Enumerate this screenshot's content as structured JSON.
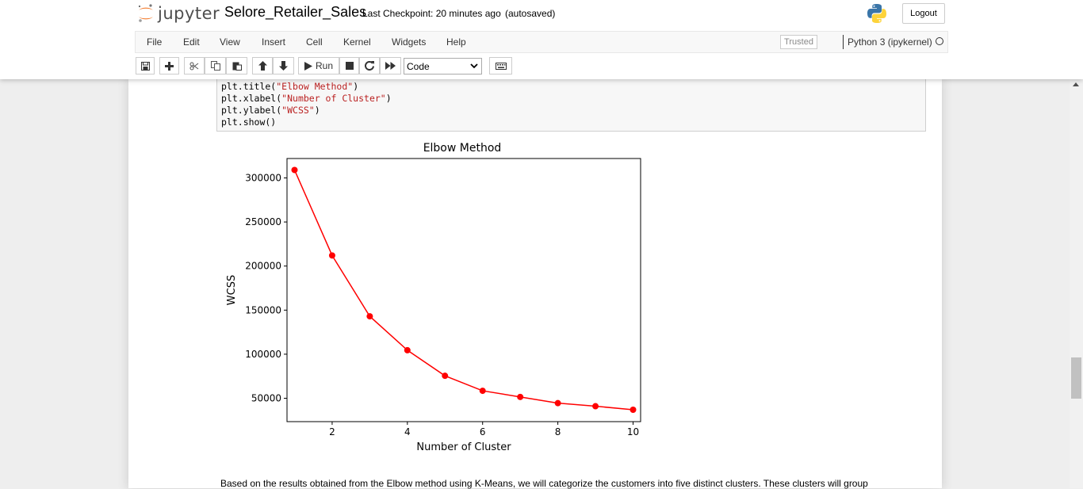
{
  "header": {
    "logo_text": "jupyter",
    "notebook_name": "Selore_Retailer_Sales",
    "checkpoint": "Last Checkpoint: 20 minutes ago",
    "autosaved": "(autosaved)",
    "logout_label": "Logout",
    "logo_color": "#f37726"
  },
  "menu": [
    "File",
    "Edit",
    "View",
    "Insert",
    "Cell",
    "Kernel",
    "Widgets",
    "Help"
  ],
  "kernel": {
    "trusted_label": "Trusted",
    "name": "Python 3 (ipykernel)"
  },
  "toolbar": {
    "run_label": "Run",
    "cell_type": "Code",
    "icons": [
      "save-icon",
      "plus-icon",
      "cut-icon",
      "copy-icon",
      "paste-icon",
      "arrow-up-icon",
      "arrow-down-icon",
      "play-icon",
      "stop-icon",
      "restart-icon",
      "fast-forward-icon",
      "keyboard-icon"
    ]
  },
  "code": {
    "lines": [
      {
        "pre": "plt.title(",
        "str": "\"Elbow Method\"",
        "post": ")"
      },
      {
        "pre": "plt.xlabel(",
        "str": "\"Number of Cluster\"",
        "post": ")"
      },
      {
        "pre": "plt.ylabel(",
        "str": "\"WCSS\"",
        "post": ")"
      },
      {
        "pre": "plt.show()",
        "str": "",
        "post": ""
      }
    ]
  },
  "chart_data": {
    "type": "line",
    "title": "Elbow Method",
    "xlabel": "Number of Cluster",
    "ylabel": "WCSS",
    "x": [
      1,
      2,
      3,
      4,
      5,
      6,
      7,
      8,
      9,
      10
    ],
    "values": [
      309000,
      212000,
      143000,
      104500,
      75500,
      58500,
      51500,
      44500,
      41000,
      37000
    ],
    "xlim": [
      0.8,
      10.2
    ],
    "ylim": [
      23500,
      322000
    ],
    "xticks": [
      2,
      4,
      6,
      8,
      10
    ],
    "yticks": [
      50000,
      100000,
      150000,
      200000,
      250000,
      300000
    ],
    "color": "#ff0000",
    "grid": false,
    "marker": "circle"
  },
  "markdown": {
    "text": "Based on the results obtained from the Elbow method using K-Means, we will categorize the customers into five distinct clusters. These clusters will group"
  }
}
